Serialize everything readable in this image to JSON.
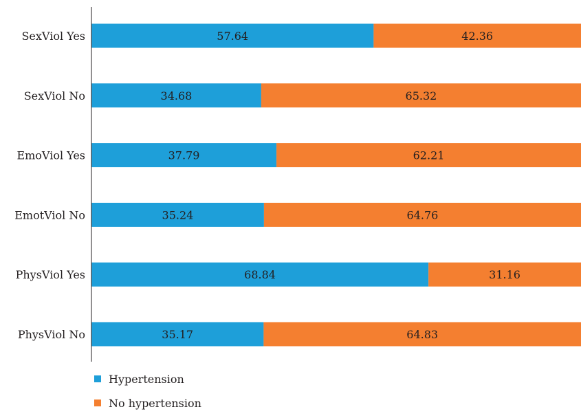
{
  "chart_data": {
    "type": "bar",
    "orientation": "horizontal",
    "stacked": true,
    "categories": [
      "SexViol Yes",
      "SexViol No",
      "EmoViol Yes",
      "EmotViol No",
      "PhysViol Yes",
      "PhysViol No"
    ],
    "series": [
      {
        "name": "Hypertension",
        "color": "#1e9fd9",
        "values": [
          57.64,
          34.68,
          37.79,
          35.24,
          68.84,
          35.17
        ]
      },
      {
        "name": "No hypertension",
        "color": "#f47f30",
        "values": [
          42.36,
          65.32,
          62.21,
          64.76,
          31.16,
          64.83
        ]
      }
    ],
    "xlim": [
      0,
      100
    ],
    "grid": false,
    "legend_position": "bottom-left"
  }
}
